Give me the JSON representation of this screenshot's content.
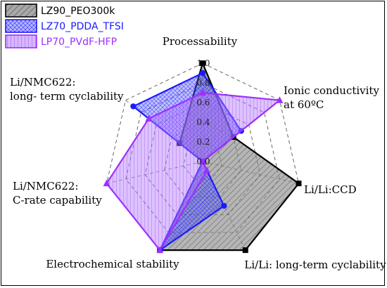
{
  "chart_data": {
    "type": "radar",
    "axes": [
      "Processability",
      "Ionic conductivity at 60ºC",
      "Li/Li:CCD",
      "Li/Li: long-term cyclability",
      "Electrochemical stability",
      "Li/NMC622: C-rate capability",
      "Li/NMC622: long- term cyclability"
    ],
    "axis_label_lines": [
      [
        "Processability"
      ],
      [
        "Ionic conductivity",
        "at 60ºC"
      ],
      [
        "Li/Li:CCD"
      ],
      [
        "Li/Li: long-term cyclability"
      ],
      [
        "Electrochemical stability"
      ],
      [
        "Li/NMC622:",
        "C-rate capability"
      ],
      [
        "Li/NMC622:",
        "long- term cyclability"
      ]
    ],
    "rlim": [
      0.0,
      1.0
    ],
    "ticks": [
      "0.0",
      "0.2",
      "0.4",
      "0.6",
      "0.8",
      "1.0"
    ],
    "grid": "dashed-polygon",
    "legend_position": "top-left",
    "series": [
      {
        "name": "LZ90_PEO300k",
        "color": "#000000",
        "fill": "#7f7f7f",
        "pattern": "diagonal",
        "marker": "square",
        "values": [
          1.0,
          0.4,
          1.0,
          1.0,
          1.0,
          0.0,
          0.3
        ]
      },
      {
        "name": "LZ70_PDDA_TFSI",
        "color": "#1a1aff",
        "fill": "#6d6dff",
        "pattern": "crosshatch",
        "marker": "circle",
        "values": [
          0.9,
          0.5,
          0.0,
          0.5,
          1.0,
          0.0,
          0.9
        ]
      },
      {
        "name": "LP70_PVdF-HFP",
        "color": "#9b30ff",
        "fill": "#c58bff",
        "pattern": "vertical",
        "marker": "triangle",
        "values": [
          0.7,
          1.0,
          0.0,
          0.1,
          1.0,
          1.0,
          0.7
        ]
      }
    ]
  }
}
